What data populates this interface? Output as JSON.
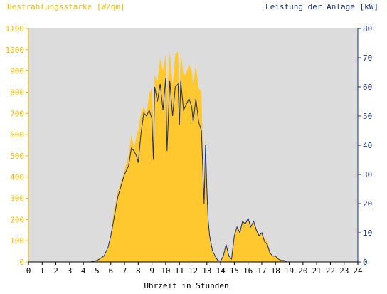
{
  "chart_data": {
    "type": "area",
    "left_axis_title": "Bestrahlungsstärke [W/qm]",
    "right_axis_title": "Leistung der Anlage [kW]",
    "xlabel": "Uhrzeit in Stunden",
    "xlim": [
      0,
      24
    ],
    "ylim_left": [
      0,
      1100
    ],
    "ylim_right": [
      0,
      80
    ],
    "x_ticks": [
      "0",
      "1",
      "2",
      "3",
      "4",
      "5",
      "6",
      "7",
      "8",
      "9",
      "10",
      "11",
      "12",
      "13",
      "14",
      "15",
      "16",
      "17",
      "18",
      "19",
      "20",
      "21",
      "22",
      "23",
      "24"
    ],
    "y_left_ticks": [
      "0",
      "100",
      "200",
      "300",
      "400",
      "500",
      "600",
      "700",
      "800",
      "900",
      "1000",
      "1100"
    ],
    "y_right_ticks": [
      "0",
      "10",
      "20",
      "30",
      "40",
      "50",
      "60",
      "70",
      "80"
    ],
    "grid": false,
    "colors": {
      "irradiance": "#ffc82e",
      "power": "#1a2f7a",
      "plot_bg": "#dcdcdc",
      "left_axis": "#f5b800",
      "right_axis": "#1a2f7a"
    },
    "series": [
      {
        "name": "Bestrahlungsstärke [W/qm]",
        "axis": "left",
        "x": [
          0,
          4.5,
          5,
          5.5,
          5.8,
          6,
          6.2,
          6.5,
          6.8,
          7,
          7.3,
          7.5,
          7.7,
          7.9,
          8,
          8.2,
          8.4,
          8.6,
          8.8,
          9,
          9.1,
          9.2,
          9.4,
          9.6,
          9.8,
          10,
          10.1,
          10.3,
          10.5,
          10.7,
          10.9,
          11,
          11.1,
          11.3,
          11.5,
          11.7,
          11.9,
          12,
          12.2,
          12.4,
          12.6,
          12.8,
          12.9,
          13,
          13.1,
          13.2,
          13.4,
          13.6,
          13.8,
          14,
          14.2,
          14.4,
          14.6,
          14.8,
          15,
          15.2,
          15.4,
          15.6,
          15.8,
          16,
          16.2,
          16.4,
          16.6,
          16.8,
          17,
          17.2,
          17.4,
          17.6,
          17.8,
          18,
          18.2,
          18.4,
          18.6,
          18.8,
          19,
          19.2,
          19.4,
          19.6,
          19.8,
          20,
          20.2,
          20.4,
          20.6,
          24
        ],
        "values": [
          0,
          0,
          10,
          30,
          60,
          130,
          230,
          330,
          390,
          430,
          500,
          600,
          540,
          600,
          620,
          700,
          730,
          700,
          790,
          820,
          660,
          880,
          850,
          960,
          900,
          980,
          790,
          990,
          830,
          980,
          990,
          760,
          990,
          880,
          890,
          930,
          900,
          830,
          930,
          820,
          800,
          330,
          580,
          350,
          180,
          120,
          60,
          30,
          10,
          5,
          30,
          90,
          30,
          10,
          130,
          170,
          140,
          190,
          180,
          200,
          170,
          190,
          160,
          130,
          140,
          110,
          100,
          50,
          30,
          30,
          20,
          10,
          10,
          0,
          0,
          0,
          0,
          0,
          0,
          0,
          0,
          0,
          0,
          0
        ]
      },
      {
        "name": "Leistung der Anlage [kW]",
        "axis": "right",
        "x": [
          0,
          4.5,
          5,
          5.5,
          5.8,
          6,
          6.2,
          6.5,
          6.8,
          7,
          7.3,
          7.5,
          7.7,
          7.9,
          8,
          8.2,
          8.4,
          8.6,
          8.8,
          9,
          9.1,
          9.2,
          9.4,
          9.6,
          9.8,
          10,
          10.1,
          10.3,
          10.5,
          10.7,
          10.9,
          11,
          11.1,
          11.3,
          11.5,
          11.7,
          11.9,
          12,
          12.2,
          12.4,
          12.6,
          12.8,
          12.9,
          13,
          13.1,
          13.2,
          13.4,
          13.6,
          13.8,
          14,
          14.2,
          14.4,
          14.6,
          14.8,
          15,
          15.2,
          15.4,
          15.6,
          15.8,
          16,
          16.2,
          16.4,
          16.6,
          16.8,
          17,
          17.2,
          17.4,
          17.6,
          17.8,
          18,
          18.2,
          18.4,
          18.6,
          18.8,
          19,
          19.2,
          19.4,
          19.6,
          19.8,
          20,
          20.2,
          20.4,
          20.6,
          24
        ],
        "values": [
          0,
          0,
          0.5,
          2,
          5,
          9,
          14,
          22,
          27,
          30,
          33,
          39,
          38,
          36,
          34,
          44,
          51,
          50,
          52,
          49,
          35,
          60,
          55,
          61,
          52,
          63,
          38,
          62,
          50,
          60,
          61,
          47,
          62,
          52,
          54,
          56,
          53,
          48,
          56,
          48,
          45,
          20,
          40,
          25,
          14,
          9,
          4,
          2,
          0.5,
          0.3,
          2,
          6,
          2,
          1,
          9,
          12,
          10,
          14,
          13,
          15,
          12,
          14,
          11,
          9,
          10,
          7,
          6,
          3,
          2,
          2,
          1,
          0.5,
          0.5,
          0,
          0,
          0,
          0,
          0,
          0,
          0,
          0,
          0,
          0,
          0
        ]
      }
    ]
  }
}
